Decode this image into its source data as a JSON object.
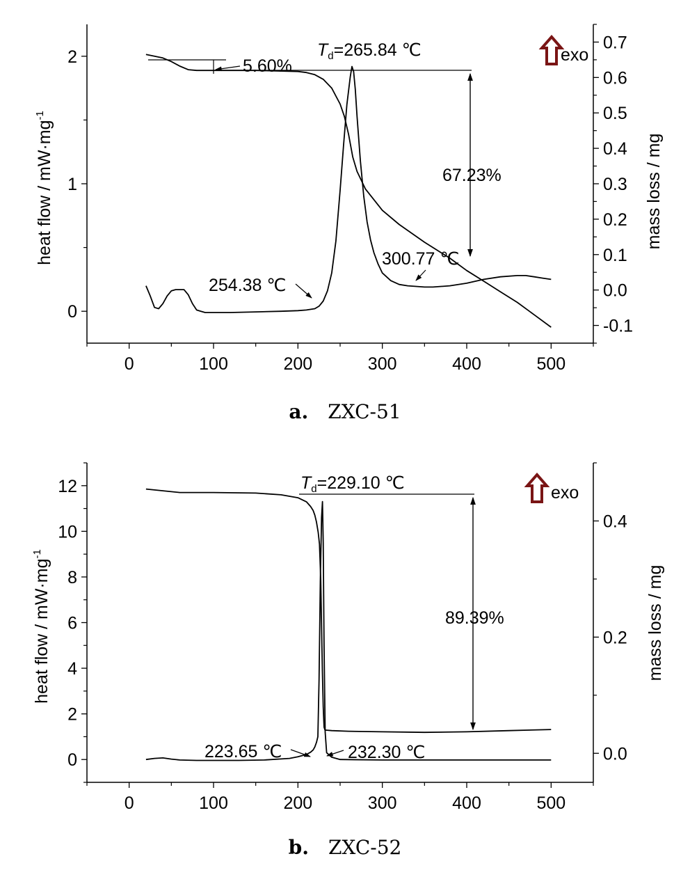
{
  "chart_data": [
    {
      "type": "line",
      "caption_label": "a.",
      "caption_name": "ZXC-51",
      "xlim": [
        -50,
        550
      ],
      "xticks": [
        0,
        100,
        200,
        300,
        400,
        500
      ],
      "ylabel_left": "heat flow / mW·mg",
      "ylabel_left_sup": "-1",
      "ylim_left": [
        -0.25,
        2.25
      ],
      "yticks_left": [
        0,
        1,
        2
      ],
      "ylabel_right": "mass loss / mg",
      "ylim_right": [
        -0.15,
        0.75
      ],
      "yticks_right": [
        -0.1,
        0.0,
        0.1,
        0.2,
        0.3,
        0.4,
        0.5,
        0.6,
        0.7
      ],
      "yticks_right_labels": [
        "-0.1",
        "0.0",
        "0.1",
        "0.2",
        "0.3",
        "0.4",
        "0.5",
        "0.6",
        "0.7"
      ],
      "exo_label": "exo",
      "series": [
        {
          "axis": "left",
          "x": [
            20,
            25,
            30,
            35,
            40,
            45,
            50,
            55,
            60,
            65,
            70,
            75,
            80,
            85,
            90,
            100,
            120,
            150,
            180,
            200,
            210,
            220,
            225,
            230,
            235,
            240,
            245,
            250,
            254,
            258,
            262,
            264,
            266,
            268,
            270,
            274,
            278,
            282,
            286,
            290,
            295,
            300,
            310,
            320,
            330,
            340,
            350,
            360,
            380,
            400,
            420,
            440,
            460,
            470,
            480,
            490,
            500
          ],
          "y": [
            0.2,
            0.12,
            0.03,
            0.02,
            0.06,
            0.12,
            0.16,
            0.17,
            0.17,
            0.17,
            0.13,
            0.06,
            0.01,
            0.0,
            -0.01,
            -0.01,
            -0.01,
            -0.005,
            0.0,
            0.005,
            0.01,
            0.02,
            0.04,
            0.08,
            0.16,
            0.3,
            0.55,
            0.95,
            1.3,
            1.62,
            1.84,
            1.92,
            1.88,
            1.74,
            1.53,
            1.18,
            0.9,
            0.7,
            0.56,
            0.46,
            0.37,
            0.3,
            0.24,
            0.21,
            0.2,
            0.195,
            0.19,
            0.19,
            0.2,
            0.22,
            0.25,
            0.27,
            0.28,
            0.28,
            0.27,
            0.26,
            0.25
          ]
        },
        {
          "axis": "right",
          "x": [
            20,
            30,
            40,
            50,
            60,
            70,
            80,
            90,
            100,
            150,
            200,
            210,
            220,
            230,
            240,
            250,
            255,
            260,
            265,
            270,
            280,
            300,
            320,
            350,
            380,
            400,
            420,
            440,
            460,
            480,
            500
          ],
          "y": [
            0.665,
            0.66,
            0.655,
            0.645,
            0.632,
            0.622,
            0.62,
            0.62,
            0.62,
            0.62,
            0.617,
            0.614,
            0.608,
            0.595,
            0.57,
            0.525,
            0.49,
            0.44,
            0.375,
            0.335,
            0.285,
            0.225,
            0.185,
            0.135,
            0.09,
            0.055,
            0.025,
            -0.005,
            -0.035,
            -0.07,
            -0.105
          ]
        }
      ],
      "annotations": [
        {
          "text": "5.60%"
        },
        {
          "text_prefix": "T",
          "text_sub": "d",
          "text": "=265.84 ℃"
        },
        {
          "text": "67.23%"
        },
        {
          "text": "254.38 ℃"
        },
        {
          "text": "300.77 ℃"
        }
      ]
    },
    {
      "type": "line",
      "caption_label": "b.",
      "caption_name": "ZXC-52",
      "xlim": [
        -50,
        550
      ],
      "xticks": [
        0,
        100,
        200,
        300,
        400,
        500
      ],
      "ylabel_left": "heat flow / mW·mg",
      "ylabel_left_sup": "-1",
      "ylim_left": [
        -1.0,
        13.0
      ],
      "yticks_left": [
        0,
        2,
        4,
        6,
        8,
        10,
        12
      ],
      "ylabel_right": "mass loss / mg",
      "ylim_right": [
        -0.05,
        0.5
      ],
      "yticks_right": [
        0.0,
        0.2,
        0.4
      ],
      "yticks_right_labels": [
        "0.0",
        "0.2",
        "0.4"
      ],
      "exo_label": "exo",
      "series": [
        {
          "axis": "left",
          "x": [
            20,
            30,
            40,
            50,
            60,
            80,
            100,
            130,
            160,
            190,
            200,
            210,
            215,
            218,
            220,
            222,
            223.65,
            225,
            226.5,
            228,
            229.1,
            230,
            231,
            232.3,
            234,
            240,
            250,
            300,
            350,
            400,
            450,
            500
          ],
          "y": [
            0.0,
            0.05,
            0.07,
            0.02,
            -0.02,
            -0.04,
            -0.04,
            -0.04,
            -0.02,
            0.05,
            0.12,
            0.22,
            0.32,
            0.42,
            0.55,
            0.75,
            1.0,
            3.5,
            7.8,
            10.6,
            11.3,
            9.5,
            5.0,
            1.2,
            0.3,
            0.1,
            0.0,
            -0.02,
            -0.02,
            -0.02,
            -0.02,
            -0.02
          ]
        },
        {
          "axis": "right",
          "x": [
            20,
            40,
            60,
            100,
            150,
            180,
            200,
            210,
            215,
            218,
            220,
            222,
            224,
            225.5,
            227,
            228,
            229,
            230,
            231,
            232,
            240,
            260,
            300,
            350,
            400,
            450,
            500
          ],
          "y": [
            0.455,
            0.452,
            0.449,
            0.449,
            0.448,
            0.445,
            0.44,
            0.433,
            0.425,
            0.418,
            0.41,
            0.398,
            0.38,
            0.36,
            0.3,
            0.22,
            0.14,
            0.08,
            0.045,
            0.04,
            0.039,
            0.038,
            0.037,
            0.036,
            0.037,
            0.039,
            0.041
          ]
        }
      ],
      "annotations": [
        {
          "text_prefix": "T",
          "text_sub": "d",
          "text": "=229.10 ℃"
        },
        {
          "text": "89.39%"
        },
        {
          "text": "223.65 ℃"
        },
        {
          "text": "232.30 ℃"
        }
      ]
    }
  ]
}
